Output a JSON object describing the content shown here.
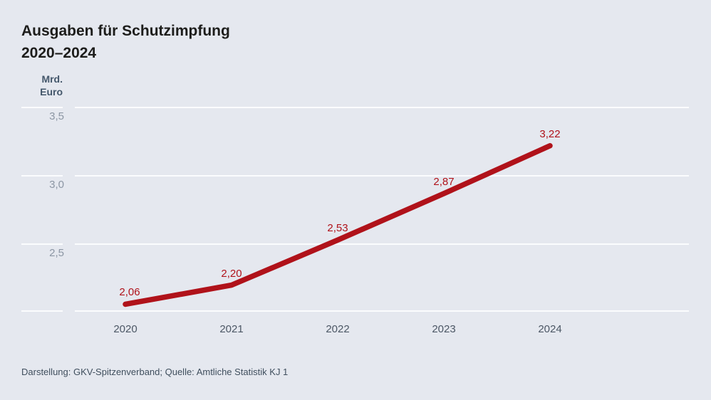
{
  "header": {
    "title": "Ausgaben für Schutzimpfung\n2020–2024"
  },
  "axis": {
    "unit_label": "Mrd.\nEuro"
  },
  "chart_data": {
    "type": "line",
    "title": "Ausgaben für Schutzimpfung 2020–2024",
    "ylabel": "Mrd. Euro",
    "categories": [
      "2020",
      "2021",
      "2022",
      "2023",
      "2024"
    ],
    "values": [
      2.06,
      2.2,
      2.53,
      2.87,
      3.22
    ],
    "value_labels": [
      "2,06",
      "2,20",
      "2,53",
      "2,87",
      "3,22"
    ],
    "yticks": [
      2.5,
      3.0,
      3.5
    ],
    "ytick_labels": [
      "2,5",
      "3,0",
      "3,5"
    ],
    "ylim": [
      2.0,
      3.75
    ],
    "grid": true,
    "legend_position": "none",
    "line_color": "#b0121a",
    "gridline_color": "#fbfcfe",
    "background_color": "#e5e8ef"
  },
  "footer": {
    "source": "Darstellung: GKV-Spitzenverband; Quelle: Amtliche Statistik KJ 1"
  }
}
